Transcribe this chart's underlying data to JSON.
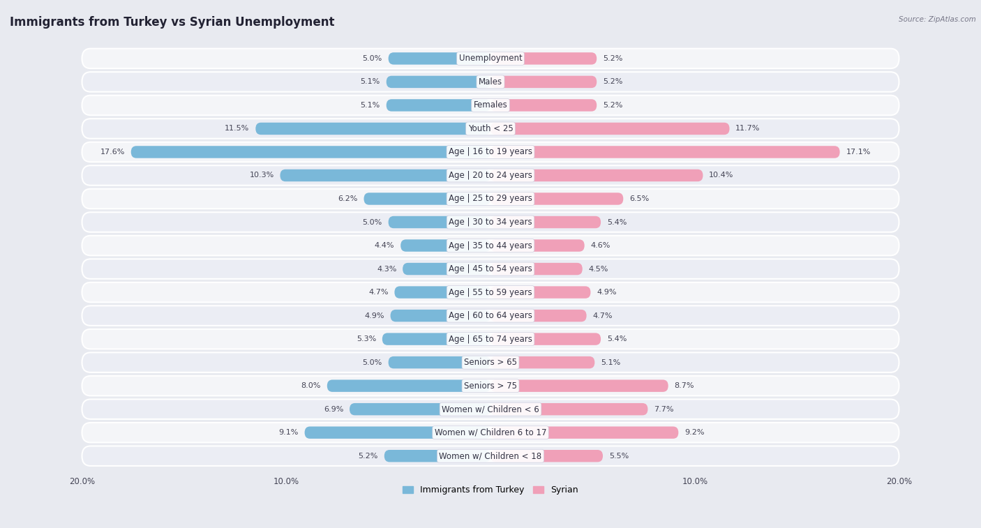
{
  "title": "Immigrants from Turkey vs Syrian Unemployment",
  "source": "Source: ZipAtlas.com",
  "categories": [
    "Unemployment",
    "Males",
    "Females",
    "Youth < 25",
    "Age | 16 to 19 years",
    "Age | 20 to 24 years",
    "Age | 25 to 29 years",
    "Age | 30 to 34 years",
    "Age | 35 to 44 years",
    "Age | 45 to 54 years",
    "Age | 55 to 59 years",
    "Age | 60 to 64 years",
    "Age | 65 to 74 years",
    "Seniors > 65",
    "Seniors > 75",
    "Women w/ Children < 6",
    "Women w/ Children 6 to 17",
    "Women w/ Children < 18"
  ],
  "turkey_values": [
    5.0,
    5.1,
    5.1,
    11.5,
    17.6,
    10.3,
    6.2,
    5.0,
    4.4,
    4.3,
    4.7,
    4.9,
    5.3,
    5.0,
    8.0,
    6.9,
    9.1,
    5.2
  ],
  "syrian_values": [
    5.2,
    5.2,
    5.2,
    11.7,
    17.1,
    10.4,
    6.5,
    5.4,
    4.6,
    4.5,
    4.9,
    4.7,
    5.4,
    5.1,
    8.7,
    7.7,
    9.2,
    5.5
  ],
  "turkey_color": "#7ab8d9",
  "syrian_color": "#f0a0b8",
  "turkey_label": "Immigrants from Turkey",
  "syrian_label": "Syrian",
  "max_val": 20.0,
  "bg_color": "#e8eaf0",
  "row_color_odd": "#f0f2f7",
  "row_color_even": "#e2e5ee",
  "title_fontsize": 12,
  "label_fontsize": 8.5,
  "value_fontsize": 8.0
}
